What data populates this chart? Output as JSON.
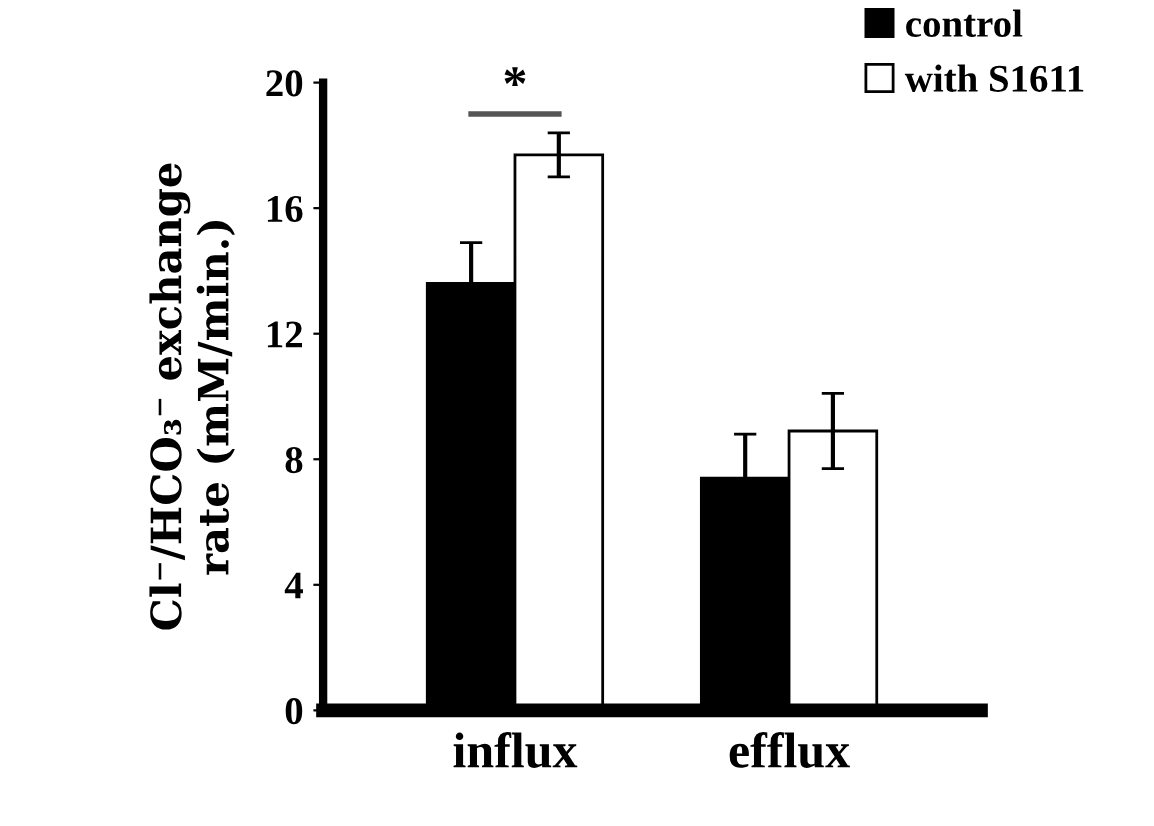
{
  "chart_data": {
    "type": "bar",
    "ylabel": "Cl⁻/HCO₃⁻ exchange\nrate (mM/min.)",
    "categories": [
      "influx",
      "efflux"
    ],
    "series": [
      {
        "name": "control",
        "color": "#000000",
        "values": [
          13.6,
          7.4
        ],
        "errors": [
          1.3,
          1.4
        ]
      },
      {
        "name": "with S1611",
        "color": "#ffffff",
        "values": [
          17.7,
          8.9
        ],
        "errors": [
          0.7,
          1.2
        ]
      }
    ],
    "ylim": [
      0,
      20
    ],
    "yticks": [
      0,
      4,
      8,
      12,
      16,
      20
    ],
    "grid": false,
    "legend": "top right",
    "annotations": [
      "*"
    ]
  }
}
